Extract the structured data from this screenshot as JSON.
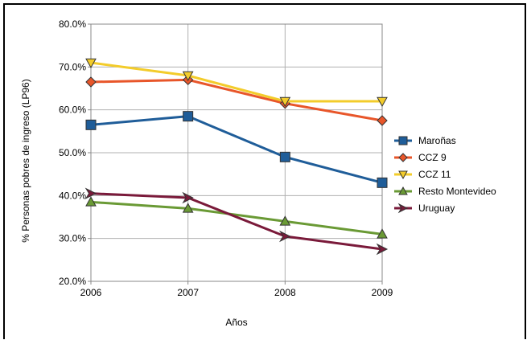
{
  "chart_data": {
    "type": "line",
    "x": [
      2006,
      2007,
      2008,
      2009
    ],
    "xlabel": "Años",
    "ylabel": "% Personas pobres de ingreso (LP96)",
    "ylim": [
      20,
      80
    ],
    "yticks": [
      "20.0%",
      "30.0%",
      "40.0%",
      "50.0%",
      "60.0%",
      "70.0%",
      "80.0%"
    ],
    "xticks": [
      "2006",
      "2007",
      "2008",
      "2009"
    ],
    "grid": true,
    "legend_position": "right",
    "series": [
      {
        "name": "Maroñas",
        "color": "#1f5d99",
        "marker": "square",
        "values": [
          56.5,
          58.5,
          49.0,
          43.0
        ]
      },
      {
        "name": "CCZ 9",
        "color": "#e8562a",
        "marker": "diamond",
        "values": [
          66.5,
          67.0,
          61.5,
          57.5
        ]
      },
      {
        "name": "CCZ 11",
        "color": "#f3cc2b",
        "marker": "triangle-down",
        "values": [
          71.0,
          68.0,
          62.0,
          62.0
        ]
      },
      {
        "name": "Resto Montevideo",
        "color": "#6a9a35",
        "marker": "triangle-up",
        "values": [
          38.5,
          37.0,
          34.0,
          31.0
        ]
      },
      {
        "name": "Uruguay",
        "color": "#7a1a3a",
        "marker": "arrow",
        "values": [
          40.5,
          39.5,
          30.5,
          27.5
        ]
      }
    ]
  }
}
